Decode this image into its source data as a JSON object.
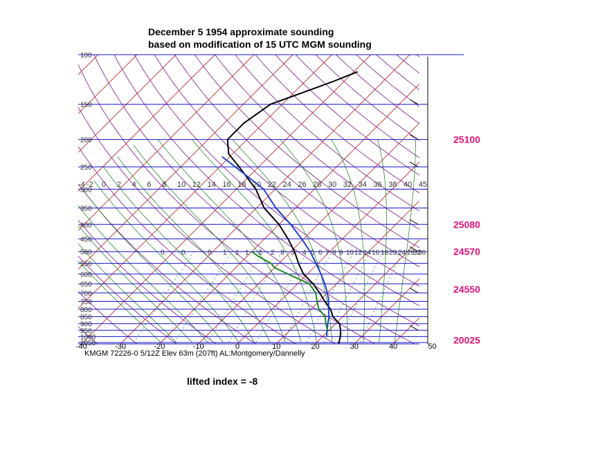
{
  "chart_data": {
    "type": "skew-t log-p sounding",
    "title": "December 5  1954  approximate sounding",
    "subtitle": "based on modification of 15 UTC MGM sounding",
    "station_label": "KMGM 72226-0 5/12Z  Elev 63m (207ft) AL:Montgomery/Dannelly",
    "lifted_index_text": "lifted index = -8",
    "pressure_levels": [
      100,
      150,
      200,
      250,
      300,
      350,
      400,
      450,
      500,
      550,
      600,
      650,
      700,
      750,
      800,
      850,
      900,
      950,
      1000,
      1050
    ],
    "pressure_labels": [
      "100",
      "150",
      "200",
      "250",
      "300",
      "350",
      "400",
      "450",
      "500",
      "550",
      "600",
      "650",
      "700",
      "750",
      "800",
      "850",
      "900",
      "950",
      "1000",
      "1050"
    ],
    "x_ticks": [
      -40,
      -30,
      -20,
      -10,
      0,
      10,
      20,
      30,
      40,
      50
    ],
    "x_tick_labels": [
      "-40",
      "-30",
      "-20",
      "-10",
      "0",
      "10",
      "20",
      "30",
      "40",
      "50"
    ],
    "mixing_ratio_labels_top": [
      "-4",
      "-2",
      "0",
      "2",
      "4",
      "6",
      "8",
      "10",
      "12",
      "14",
      "16",
      "18",
      "20",
      "22",
      "24",
      "26",
      "28",
      "30",
      "32",
      "34",
      "36",
      "38",
      "40",
      "45"
    ],
    "mixing_ratio_labels_mid": [
      "0.",
      "0.",
      "0.",
      "1",
      "1",
      "1",
      "2",
      "2",
      "3",
      "3",
      "4",
      "5",
      "6",
      "7",
      "8",
      "9",
      "10",
      "12",
      "14",
      "16",
      "18",
      "20",
      "24",
      "28",
      "32",
      "36"
    ],
    "right_values": [
      {
        "label": "25100",
        "p": 200
      },
      {
        "label": "25080",
        "p": 400
      },
      {
        "label": "24570",
        "p": 500
      },
      {
        "label": "24550",
        "p": 680
      },
      {
        "label": "20025",
        "p": 1030
      }
    ],
    "series": [
      {
        "role": "temperature",
        "color": "#000000",
        "points": [
          [
            1062,
            26
          ],
          [
            1000,
            24.5
          ],
          [
            950,
            23
          ],
          [
            900,
            21
          ],
          [
            850,
            17.5
          ],
          [
            800,
            15
          ],
          [
            750,
            11.5
          ],
          [
            700,
            8
          ],
          [
            650,
            4
          ],
          [
            600,
            -1
          ],
          [
            550,
            -5
          ],
          [
            500,
            -9
          ],
          [
            450,
            -14
          ],
          [
            400,
            -20
          ],
          [
            350,
            -28
          ],
          [
            300,
            -35
          ],
          [
            250,
            -45
          ],
          [
            225,
            -51
          ],
          [
            200,
            -55
          ],
          [
            175,
            -55
          ],
          [
            150,
            -53
          ],
          [
            125,
            -43
          ],
          [
            115,
            -39
          ]
        ]
      },
      {
        "role": "parcel",
        "color": "#1f3fc8",
        "points": [
          [
            1000,
            21
          ],
          [
            950,
            19.5
          ],
          [
            900,
            18
          ],
          [
            850,
            16.5
          ],
          [
            800,
            14.5
          ],
          [
            750,
            12.5
          ],
          [
            700,
            10
          ],
          [
            650,
            7
          ],
          [
            600,
            3.5
          ],
          [
            550,
            -0.5
          ],
          [
            500,
            -5
          ],
          [
            450,
            -10.5
          ],
          [
            400,
            -17
          ],
          [
            350,
            -25
          ],
          [
            300,
            -33
          ],
          [
            250,
            -46
          ],
          [
            230,
            -52
          ]
        ]
      },
      {
        "role": "dewpoint",
        "color": "#1c8a1c",
        "points": [
          [
            960,
            20
          ],
          [
            900,
            17.5
          ],
          [
            850,
            15.5
          ],
          [
            800,
            12
          ],
          [
            750,
            9.5
          ],
          [
            700,
            7
          ],
          [
            650,
            3
          ],
          [
            600,
            -5
          ],
          [
            570,
            -10
          ],
          [
            550,
            -12
          ],
          [
            520,
            -17
          ],
          [
            500,
            -20
          ]
        ]
      }
    ]
  }
}
